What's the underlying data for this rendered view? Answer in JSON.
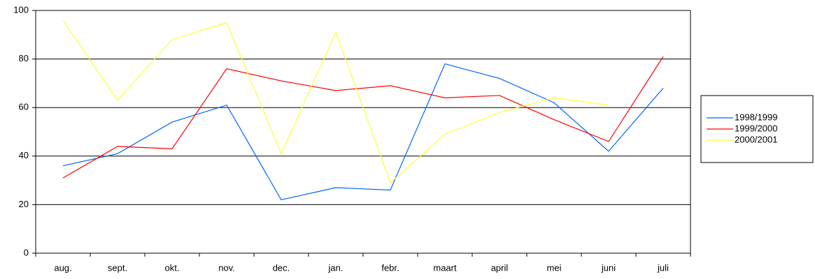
{
  "chart_data": {
    "type": "line",
    "categories": [
      "aug.",
      "sept.",
      "okt.",
      "nov.",
      "dec.",
      "jan.",
      "febr.",
      "maart",
      "april",
      "mei",
      "juni",
      "juli"
    ],
    "series": [
      {
        "name": "1998/1999",
        "color": "#0066ff",
        "values": [
          36,
          41,
          54,
          61,
          22,
          27,
          26,
          78,
          72,
          62,
          42,
          68
        ]
      },
      {
        "name": "1999/2000",
        "color": "#ff0000",
        "values": [
          31,
          44,
          43,
          76,
          71,
          67,
          69,
          64,
          65,
          55,
          46,
          81
        ]
      },
      {
        "name": "2000/2001",
        "color": "#ffff33",
        "values": [
          96,
          63,
          88,
          95,
          41,
          91,
          29,
          49,
          58,
          64,
          61,
          null
        ]
      }
    ],
    "ylim": [
      0,
      100
    ],
    "yticks": [
      0,
      20,
      40,
      60,
      80,
      100
    ],
    "grid": true,
    "legend": "right"
  }
}
